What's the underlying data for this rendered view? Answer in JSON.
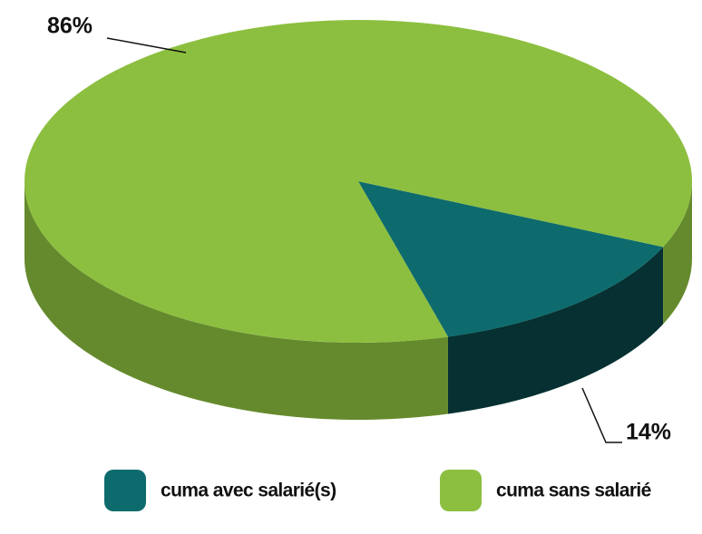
{
  "chart_data": {
    "type": "pie",
    "three_d": true,
    "categories": [
      "cuma avec salarié(s)",
      "cuma sans salarié"
    ],
    "values": [
      14,
      86
    ],
    "value_labels": [
      "14%",
      "86%"
    ],
    "colors": [
      "#0e6b6d",
      "#8cbf3f"
    ],
    "legend": "bottom"
  }
}
